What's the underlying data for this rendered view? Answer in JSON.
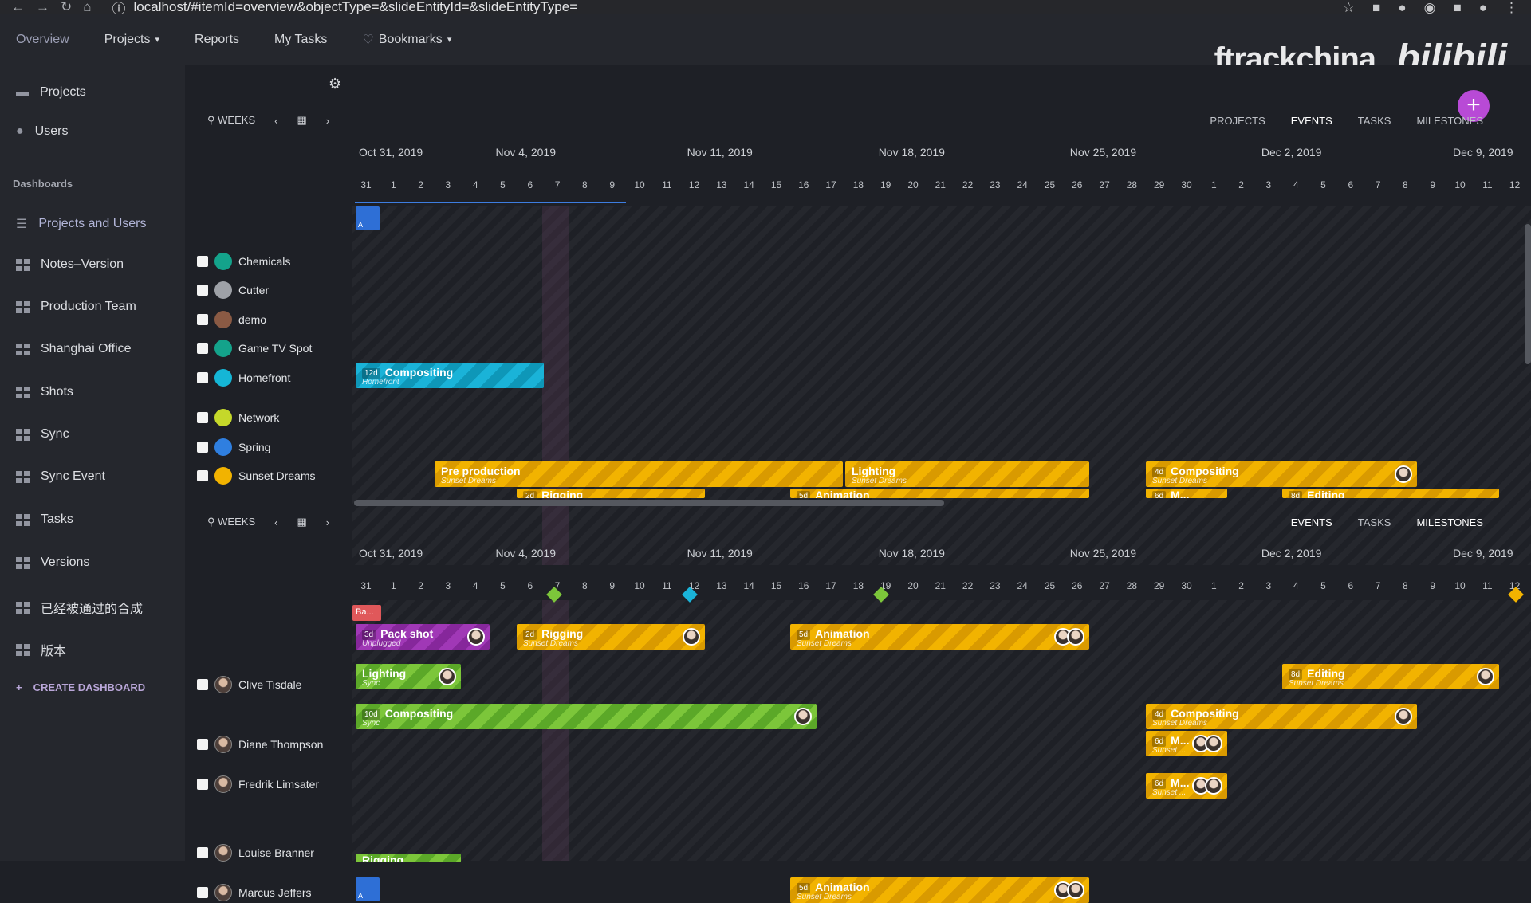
{
  "browser": {
    "url": "localhost/#itemId=overview&objectType=&slideEntityId=&slideEntityType="
  },
  "topnav": {
    "items": [
      "Overview",
      "Projects",
      "Reports",
      "My Tasks",
      "Bookmarks"
    ],
    "brand": "ftrackchina",
    "brand2": "bilibili"
  },
  "sidebar": {
    "top": [
      "Projects",
      "Users"
    ],
    "section": "Dashboards",
    "dashboards": [
      "Projects and Users",
      "Notes–Version",
      "Production Team",
      "Shanghai Office",
      "Shots",
      "Sync",
      "Sync Event",
      "Tasks",
      "Versions",
      "已经被通过的合成",
      "版本"
    ],
    "create": "CREATE DASHBOARD"
  },
  "toolbar1": {
    "weeks": "WEEKS",
    "tabs": [
      "PROJECTS",
      "EVENTS",
      "TASKS",
      "MILESTONES"
    ]
  },
  "toolbar2": {
    "weeks": "WEEKS",
    "tabs": [
      "EVENTS",
      "TASKS",
      "MILESTONES"
    ]
  },
  "timeline": {
    "weeks": [
      "Oct 31, 2019",
      "Nov 4, 2019",
      "Nov 11, 2019",
      "Nov 18, 2019",
      "Nov 25, 2019",
      "Dec 2, 2019",
      "Dec 9, 2019"
    ],
    "days": [
      "31",
      "1",
      "2",
      "3",
      "4",
      "5",
      "6",
      "7",
      "8",
      "9",
      "10",
      "11",
      "12",
      "13",
      "14",
      "15",
      "16",
      "17",
      "18",
      "19",
      "20",
      "21",
      "22",
      "23",
      "24",
      "25",
      "26",
      "27",
      "28",
      "29",
      "30",
      "1",
      "2",
      "3",
      "4",
      "5",
      "6",
      "7",
      "8",
      "9",
      "10",
      "11",
      "12"
    ]
  },
  "projects": [
    {
      "name": "Chemicals",
      "color": "#14a38b"
    },
    {
      "name": "Cutter",
      "color": "#9ea1a7"
    },
    {
      "name": "demo",
      "color": "#8a5a44"
    },
    {
      "name": "Game TV Spot",
      "color": "#14a38b"
    },
    {
      "name": "Homefront",
      "color": "#15b6d6"
    },
    {
      "name": "Network",
      "color": "#c5d82a"
    },
    {
      "name": "Spring",
      "color": "#2f7fe0"
    },
    {
      "name": "Sunset Dreams",
      "color": "#f2b300"
    }
  ],
  "users": [
    "Clive Tisdale",
    "Diane Thompson",
    "Fredrik Limsater",
    "Louise Branner",
    "Marcus Jeffers"
  ],
  "bars_top": [
    {
      "dur": "12d",
      "title": "Compositing",
      "sub": "Homefront"
    },
    {
      "dur": "",
      "title": "Pre production",
      "sub": "Sunset Dreams"
    },
    {
      "dur": "",
      "title": "Lighting",
      "sub": "Sunset Dreams"
    },
    {
      "dur": "4d",
      "title": "Compositing",
      "sub": "Sunset Dreams"
    },
    {
      "dur": "2d",
      "title": "Rigging",
      "sub": ""
    },
    {
      "dur": "5d",
      "title": "Animation",
      "sub": ""
    },
    {
      "dur": "6d",
      "title": "M...",
      "sub": ""
    },
    {
      "dur": "8d",
      "title": "Editing",
      "sub": ""
    }
  ],
  "bars_bottom": [
    {
      "dur": "3d",
      "title": "Pack shot",
      "sub": "Unplugged"
    },
    {
      "dur": "2d",
      "title": "Rigging",
      "sub": "Sunset Dreams"
    },
    {
      "dur": "5d",
      "title": "Animation",
      "sub": "Sunset Dreams"
    },
    {
      "dur": "",
      "title": "Lighting",
      "sub": "Sync"
    },
    {
      "dur": "8d",
      "title": "Editing",
      "sub": "Sunset Dreams"
    },
    {
      "dur": "10d",
      "title": "Compositing",
      "sub": "Sync"
    },
    {
      "dur": "4d",
      "title": "Compositing",
      "sub": "Sunset Dreams"
    },
    {
      "dur": "6d",
      "title": "M...",
      "sub": "Sunset ..."
    },
    {
      "dur": "6d",
      "title": "M...",
      "sub": "Sunset ..."
    },
    {
      "dur": "5d",
      "title": "Animation",
      "sub": "Sunset Dreams"
    },
    {
      "dur": "",
      "title": "Rigging",
      "sub": ""
    },
    {
      "dur": "",
      "title": "Ba...",
      "sub": ""
    }
  ],
  "avatar_labels": [
    "A",
    "A"
  ]
}
